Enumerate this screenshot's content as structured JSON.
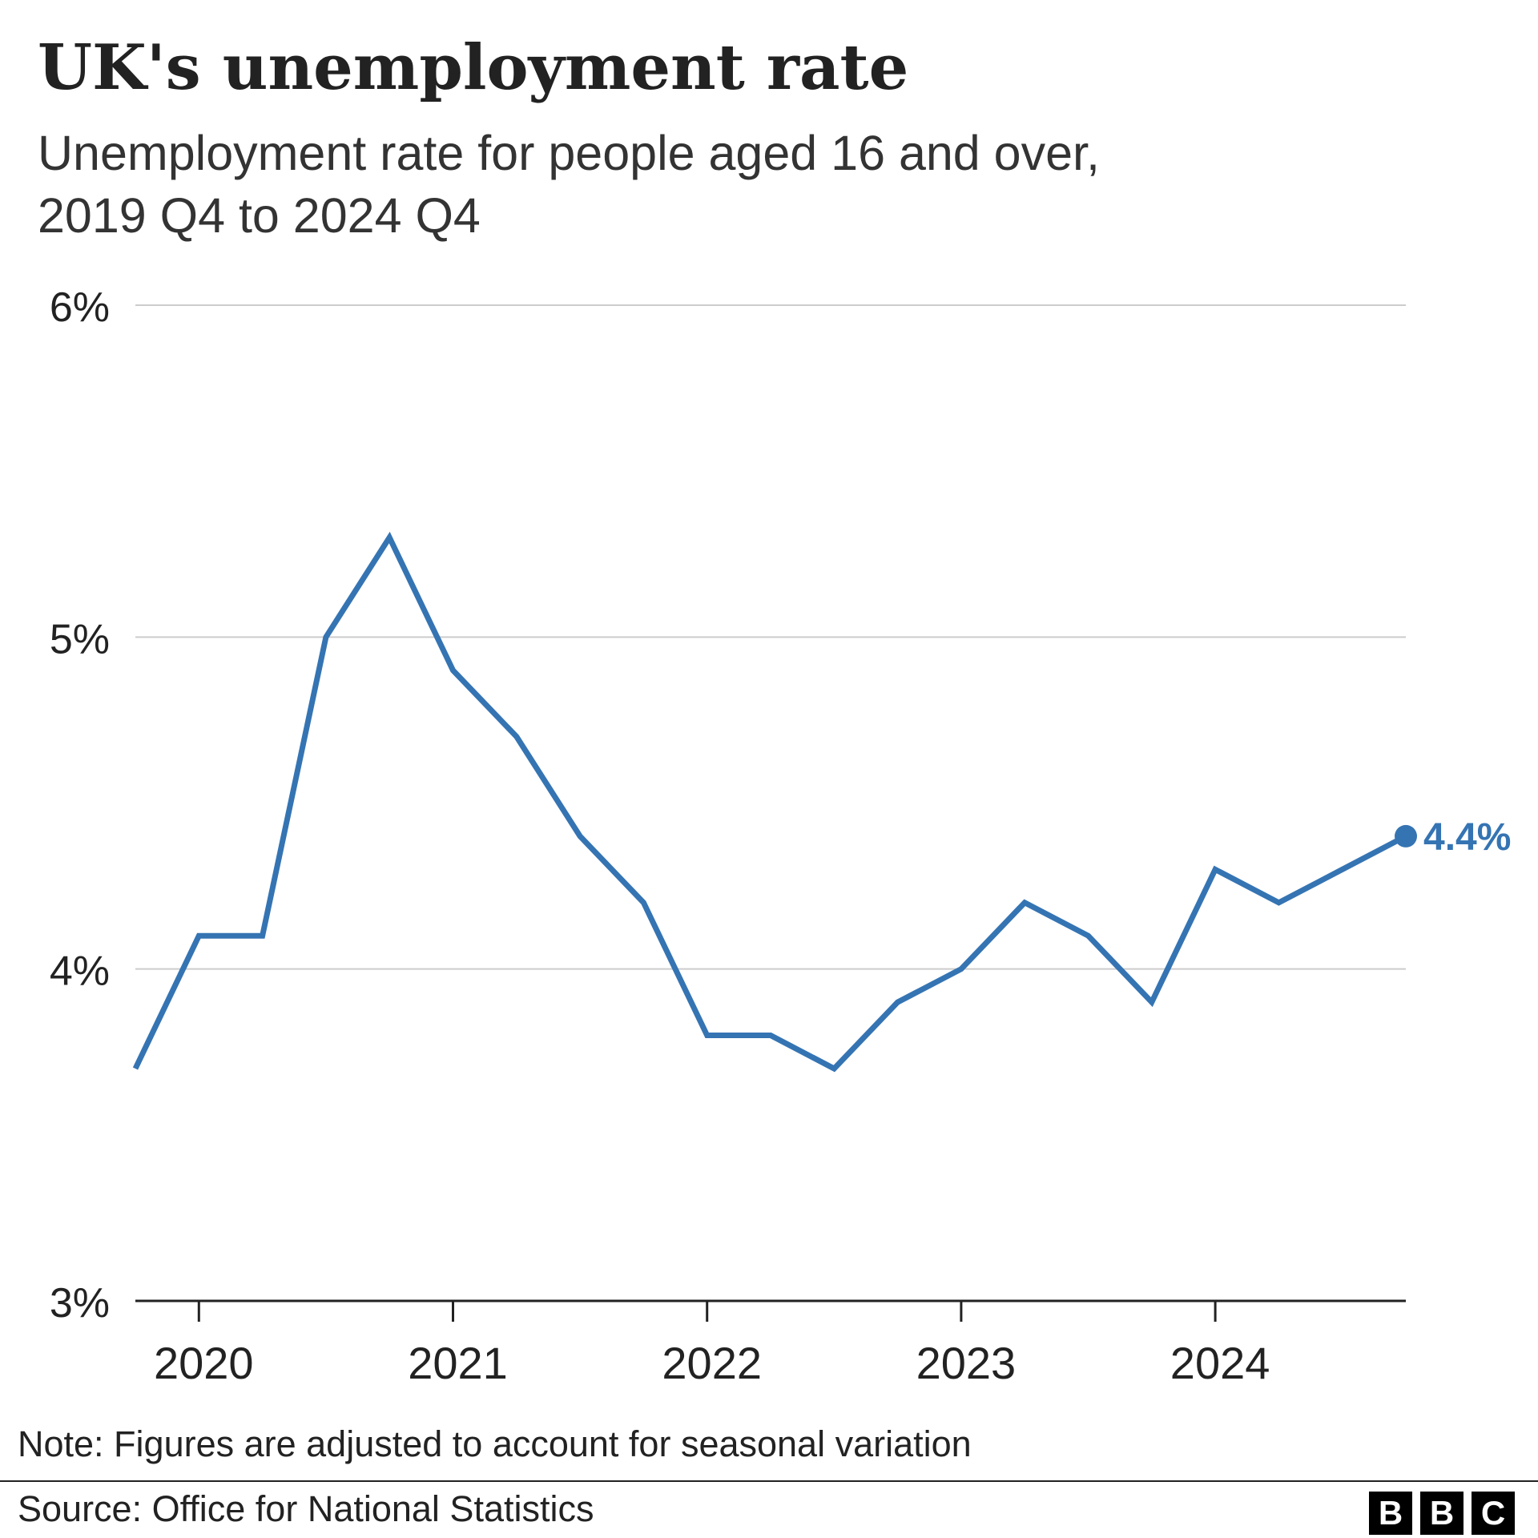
{
  "chart_data": {
    "type": "line",
    "title": "UK's unemployment rate",
    "subtitle_lines": [
      "Unemployment rate for people aged 16 and over,",
      "2019 Q4 to 2024 Q4"
    ],
    "ylim": [
      3,
      6
    ],
    "yticks": [
      3,
      4,
      5,
      6
    ],
    "ytick_labels": [
      "3%",
      "4%",
      "5%",
      "6%"
    ],
    "xticks": [
      2020,
      2021,
      2022,
      2023,
      2024
    ],
    "xtick_labels": [
      "2020",
      "2021",
      "2022",
      "2023",
      "2024"
    ],
    "grid": "horizontal",
    "series": [
      {
        "color": "#3574b3",
        "x": [
          "2019 Q4",
          "2020 Q1",
          "2020 Q2",
          "2020 Q3",
          "2020 Q4",
          "2021 Q1",
          "2021 Q2",
          "2021 Q3",
          "2021 Q4",
          "2022 Q1",
          "2022 Q2",
          "2022 Q3",
          "2022 Q4",
          "2023 Q1",
          "2023 Q2",
          "2023 Q3",
          "2023 Q4",
          "2024 Q1",
          "2024 Q2",
          "2024 Q3",
          "2024 Q4"
        ],
        "values": [
          3.7,
          4.1,
          4.1,
          5.0,
          5.3,
          4.9,
          4.7,
          4.4,
          4.2,
          3.8,
          3.8,
          3.7,
          3.9,
          4.0,
          4.2,
          4.1,
          3.9,
          4.3,
          4.2,
          4.3,
          4.4
        ]
      }
    ],
    "end_label": "4.4%"
  },
  "footer": {
    "note": "Note: Figures are adjusted to account for seasonal variation",
    "source": "Source: Office for National Statistics",
    "logo_letters": [
      "B",
      "B",
      "C"
    ]
  }
}
